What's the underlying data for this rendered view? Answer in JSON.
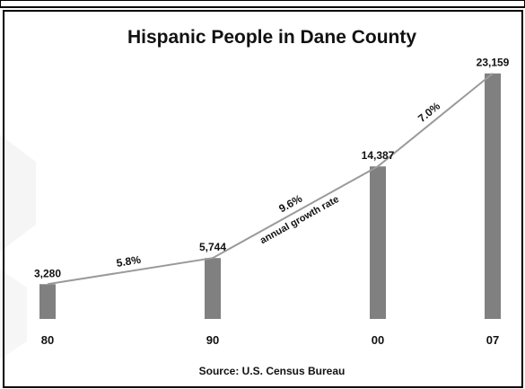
{
  "chart_data": {
    "type": "bar",
    "title": "Hispanic People in Dane County",
    "source": "Source:  U.S. Census Bureau",
    "categories": [
      "80",
      "90",
      "00",
      "07"
    ],
    "values": [
      3280,
      5744,
      14387,
      23159
    ],
    "value_labels": [
      "3,280",
      "5,744",
      "14,387",
      "23,159"
    ],
    "ylim": [
      0,
      25000
    ],
    "grid": false,
    "bar_color": "#808080",
    "line_color": "#9a9a9a",
    "growth_rates": [
      {
        "from": "80",
        "to": "90",
        "label": "5.8%"
      },
      {
        "from": "90",
        "to": "00",
        "label": "9.6%",
        "sublabel": "annual growth rate"
      },
      {
        "from": "00",
        "to": "07",
        "label": "7.0%"
      }
    ]
  }
}
